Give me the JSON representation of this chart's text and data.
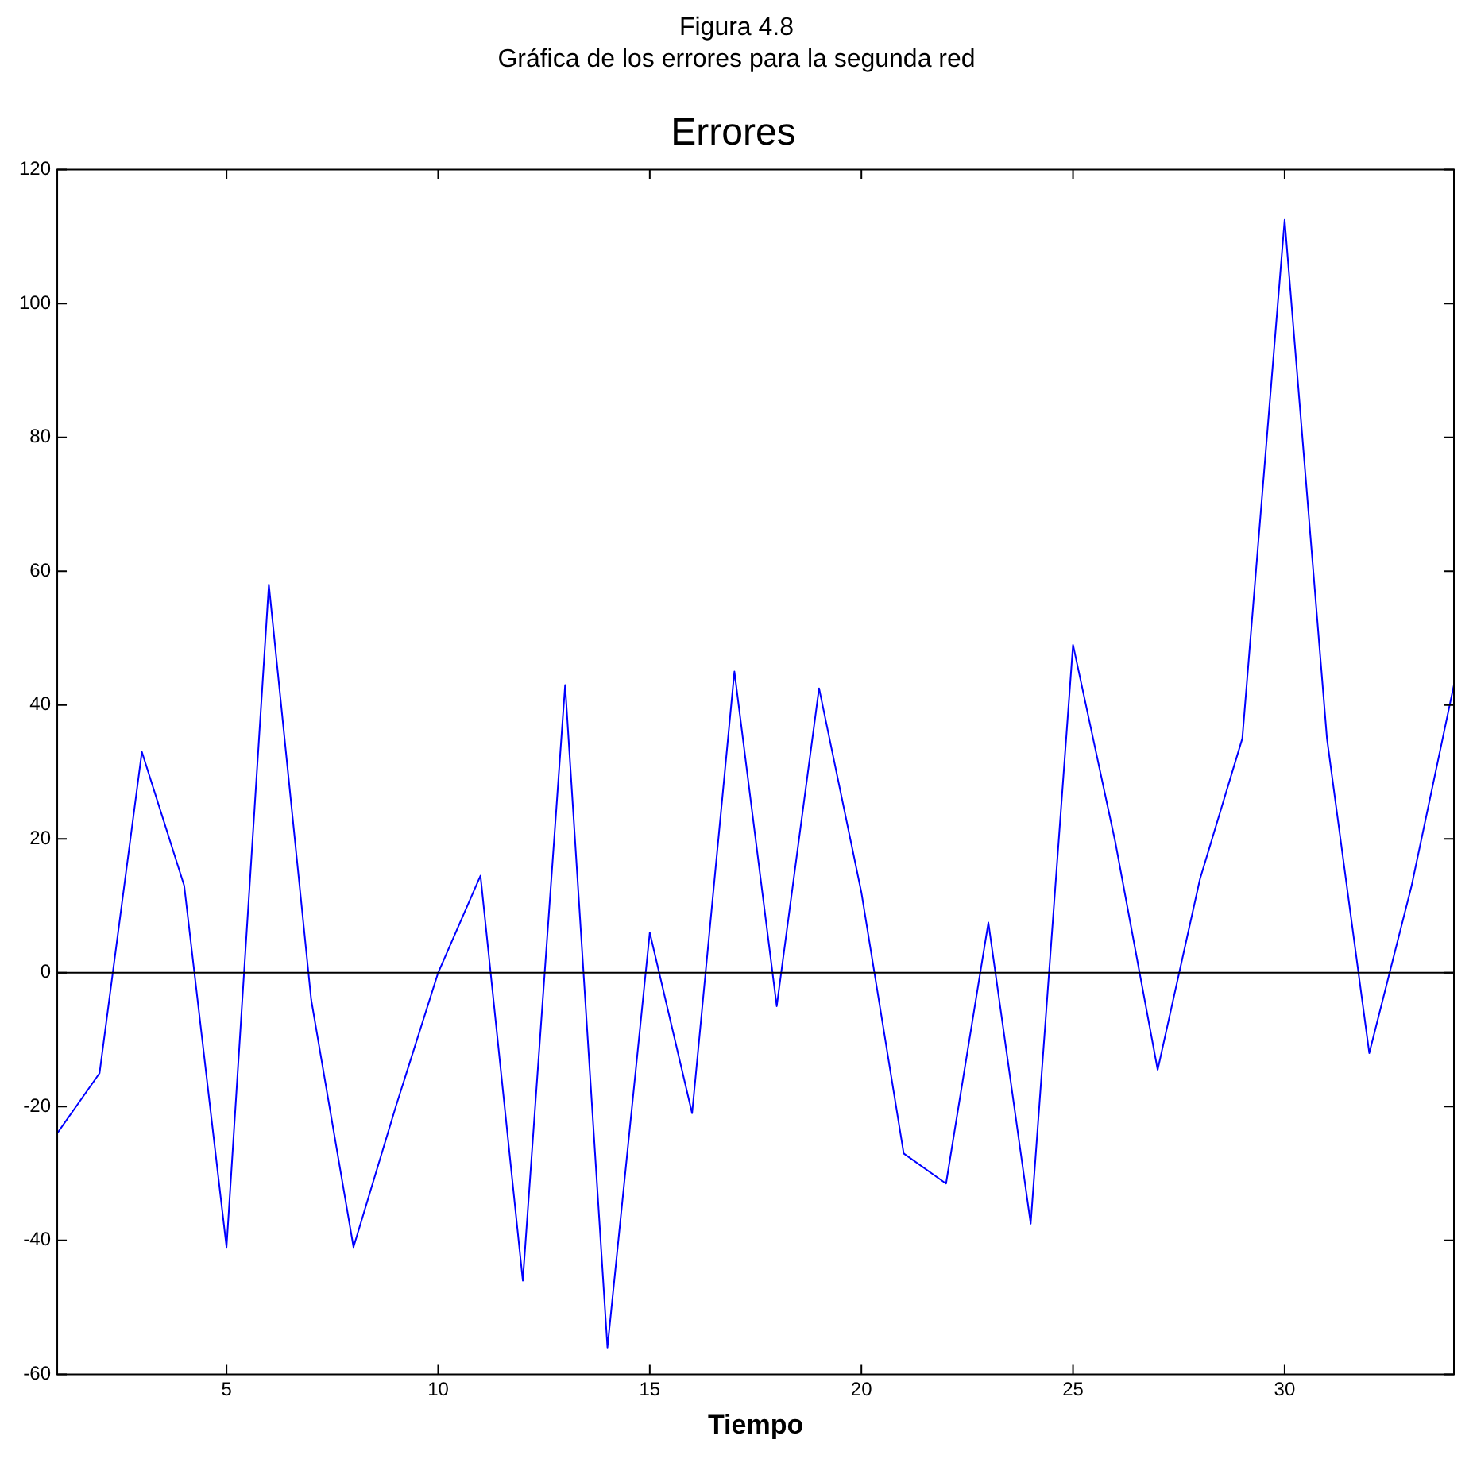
{
  "chart_data": {
    "type": "line",
    "title": "Errores",
    "xlabel": "Tiempo",
    "annotations": [
      "Figura 4.8",
      "Gráfica de los errores para la segunda red"
    ],
    "x": [
      1,
      2,
      3,
      4,
      5,
      6,
      7,
      8,
      9,
      10,
      11,
      12,
      13,
      14,
      15,
      16,
      17,
      18,
      19,
      20,
      21,
      22,
      23,
      24,
      25,
      26,
      27,
      28,
      29,
      30,
      31,
      32,
      33,
      34
    ],
    "series": [
      {
        "color": "#0000ff",
        "values": [
          -24,
          -15,
          33,
          13,
          -41,
          58,
          -4,
          -41,
          -20,
          0,
          14.5,
          -46,
          43,
          -56,
          6,
          -21,
          45,
          -5,
          42.5,
          12,
          -27,
          -31.5,
          7.5,
          -37.5,
          49,
          19.5,
          -14.5,
          14,
          35,
          112.5,
          35,
          -12,
          13,
          43
        ]
      }
    ],
    "xlim": [
      1,
      34
    ],
    "xticks": [
      5,
      10,
      15,
      20,
      25,
      30
    ],
    "ylim": [
      -60,
      120
    ],
    "yticks": [
      -60,
      -40,
      -20,
      0,
      20,
      40,
      60,
      80,
      100,
      120
    ],
    "ref_lines": [
      {
        "axis": "y",
        "value": 0,
        "color": "#000000"
      }
    ],
    "grid": false,
    "legend": false,
    "marker": "none",
    "line_style": "solid"
  }
}
